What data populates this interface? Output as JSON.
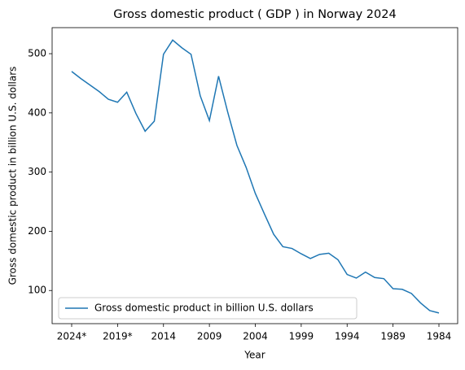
{
  "chart_data": {
    "type": "line",
    "title": "Gross domestic product ( GDP ) in Norway 2024",
    "x_label": "Year",
    "y_label": "Gross domestic product in billion U.S. dollars",
    "categories": [
      "2024*",
      null,
      null,
      null,
      null,
      "2019*",
      null,
      null,
      null,
      null,
      "2014",
      null,
      null,
      null,
      null,
      "2009",
      null,
      null,
      null,
      null,
      "2004",
      null,
      null,
      null,
      null,
      "1999",
      null,
      null,
      null,
      null,
      "1994",
      null,
      null,
      null,
      null,
      "1989",
      null,
      null,
      null,
      null,
      "1984"
    ],
    "series": [
      {
        "name": "Gross domestic product in billion U.S. dollars",
        "color": "#1f77b4",
        "values": [
          470,
          458,
          447,
          436,
          423,
          418,
          435,
          399,
          369,
          386,
          499,
          523,
          510,
          499,
          429,
          387,
          462,
          401,
          345,
          308,
          264,
          229,
          195,
          174,
          171,
          162,
          154,
          161,
          163,
          152,
          127,
          121,
          131,
          122,
          120,
          103,
          102,
          95,
          79,
          66,
          62
        ]
      }
    ],
    "ylim": [
      44,
      544
    ],
    "yticks": [
      100,
      200,
      300,
      400,
      500
    ],
    "legend": "lower left"
  }
}
